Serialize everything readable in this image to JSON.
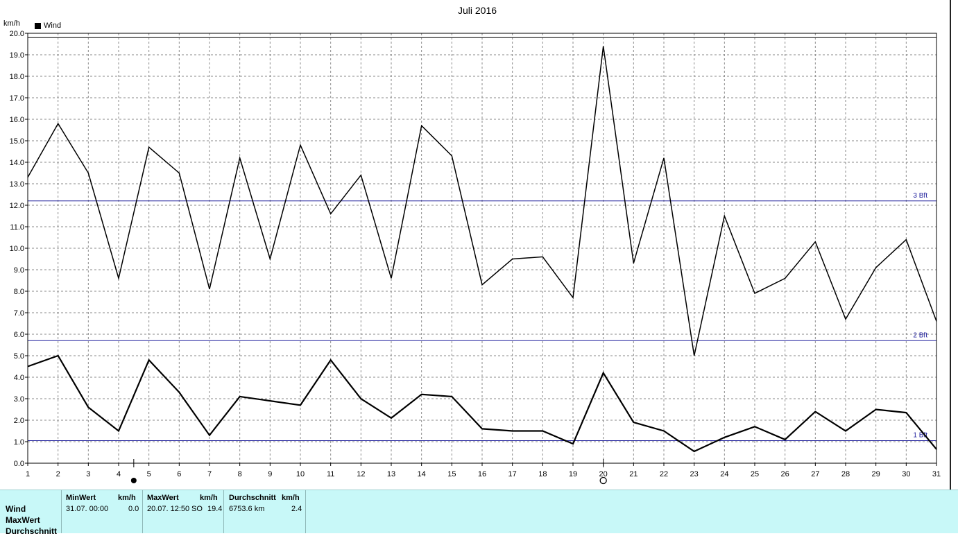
{
  "chart_data": {
    "type": "line",
    "title": "Juli 2016",
    "ylabel": "km/h",
    "xlabel": "",
    "x": [
      1,
      2,
      3,
      4,
      5,
      6,
      7,
      8,
      9,
      10,
      11,
      12,
      13,
      14,
      15,
      16,
      17,
      18,
      19,
      20,
      21,
      22,
      23,
      24,
      25,
      26,
      27,
      28,
      29,
      30,
      31
    ],
    "xlim": [
      1,
      31
    ],
    "ylim": [
      0,
      20
    ],
    "y_ticks": [
      "0.0",
      "1.0",
      "2.0",
      "3.0",
      "4.0",
      "5.0",
      "6.0",
      "7.0",
      "8.0",
      "9.0",
      "10.0",
      "11.0",
      "12.0",
      "13.0",
      "14.0",
      "15.0",
      "16.0",
      "17.0",
      "18.0",
      "19.0",
      "20.0"
    ],
    "x_ticks": [
      "1",
      "2",
      "3",
      "4",
      "5",
      "6",
      "7",
      "8",
      "9",
      "10",
      "11",
      "12",
      "13",
      "14",
      "15",
      "16",
      "17",
      "18",
      "19",
      "20",
      "21",
      "22",
      "23",
      "24",
      "25",
      "26",
      "27",
      "28",
      "29",
      "30",
      "31"
    ],
    "grid": true,
    "legend": {
      "position": "top-left",
      "entries": [
        "Wind"
      ]
    },
    "series": [
      {
        "name": "Wind",
        "role": "max",
        "color": "#000000",
        "values": [
          13.3,
          15.8,
          13.5,
          8.6,
          14.7,
          13.5,
          8.1,
          14.2,
          9.5,
          14.8,
          11.6,
          13.4,
          8.6,
          15.7,
          14.3,
          8.3,
          9.5,
          9.6,
          7.7,
          19.4,
          9.3,
          14.2,
          5.0,
          11.5,
          7.9,
          8.6,
          10.3,
          6.7,
          9.1,
          10.4,
          6.6
        ]
      },
      {
        "name": "Wind",
        "role": "average",
        "color": "#000000",
        "values": [
          4.5,
          5.0,
          2.6,
          1.5,
          4.8,
          3.3,
          1.3,
          3.1,
          2.9,
          2.7,
          4.8,
          3.0,
          2.1,
          3.2,
          3.1,
          1.6,
          1.5,
          1.5,
          0.9,
          4.2,
          1.9,
          1.5,
          0.55,
          1.2,
          1.7,
          1.1,
          2.4,
          1.5,
          2.5,
          2.35,
          0.65
        ]
      }
    ],
    "reference_lines": [
      {
        "label": "3 Bft",
        "value": 12.2,
        "color": "#1a1a9a"
      },
      {
        "label": "2 Bft",
        "value": 5.7,
        "color": "#1a1a9a"
      },
      {
        "label": "1 Bft",
        "value": 1.05,
        "color": "#1a1a9a"
      },
      {
        "label": "",
        "value": 19.8,
        "color": "#000000"
      }
    ],
    "moon_markers": [
      {
        "day": 4.5,
        "phase": "new-moon"
      },
      {
        "day": 20,
        "phase": "full-moon"
      }
    ]
  },
  "stats_table": {
    "row_labels": [
      "Wind",
      "MaxWert",
      "Durchschnitt"
    ],
    "columns": [
      {
        "header": "MinWert",
        "unit": "km/h",
        "time": "31.07.  00:00",
        "value": "0.0"
      },
      {
        "header": "MaxWert",
        "unit": "km/h",
        "time": "20.07.  12:50",
        "direction": "SO",
        "value": "19.4"
      },
      {
        "header": "Durchschnitt",
        "unit": "km/h",
        "total": "6753.6 km",
        "value": "2.4"
      }
    ]
  }
}
